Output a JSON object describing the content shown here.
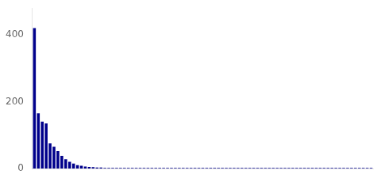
{
  "chart_data": {
    "type": "bar",
    "values": [
      420,
      165,
      140,
      135,
      75,
      65,
      52,
      38,
      28,
      20,
      15,
      10,
      8,
      6,
      5,
      4,
      3,
      3,
      2,
      2,
      2,
      2,
      2,
      2,
      2,
      2,
      2,
      2,
      2,
      2,
      2,
      2,
      2,
      2,
      2,
      2,
      2,
      2,
      2,
      2,
      2,
      2,
      2,
      2,
      2,
      2,
      2,
      2,
      2,
      2,
      2,
      2,
      2,
      2,
      2,
      2,
      2,
      2,
      2,
      2,
      2,
      2,
      2,
      2,
      2,
      2,
      2,
      2,
      2,
      2,
      2,
      2,
      2,
      2,
      2,
      2,
      2,
      2,
      2,
      2,
      2,
      2,
      2,
      2,
      2,
      2,
      2
    ],
    "color": "#00008B",
    "ylim": [
      0,
      480
    ],
    "yticks": [
      0,
      200,
      400
    ],
    "grid": false,
    "tick_labels": "y"
  }
}
